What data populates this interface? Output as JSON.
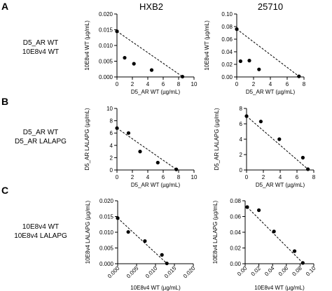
{
  "figure": {
    "column_headers": [
      "HXB2",
      "25710"
    ],
    "rows": [
      {
        "letter": "A",
        "label_lines": [
          "D5_AR WT",
          "10E8v4 WT"
        ]
      },
      {
        "letter": "B",
        "label_lines": [
          "D5_AR WT",
          "D5_AR LALAPG"
        ]
      },
      {
        "letter": "C",
        "label_lines": [
          "10E8v4 WT",
          "10E8v4 LALAPG"
        ]
      }
    ]
  },
  "chart_data": [
    {
      "type": "scatter",
      "id": "A-HXB2",
      "xlabel": "D5_AR WT (µg/mL)",
      "ylabel": "10E8v4 WT (µg/mL)",
      "xlim": [
        0,
        10
      ],
      "ylim": [
        0,
        0.02
      ],
      "xticks": [
        0,
        2,
        4,
        6,
        8,
        10
      ],
      "xtick_labels": [
        "0",
        "2",
        "4",
        "6",
        "8",
        "10"
      ],
      "yticks": [
        0,
        0.005,
        0.01,
        0.015,
        0.02
      ],
      "ytick_labels": [
        "0.000",
        "0.005",
        "0.010",
        "0.015",
        "0.020"
      ],
      "xtick_rotate": false,
      "points": [
        [
          0,
          0.0145
        ],
        [
          1,
          0.0061
        ],
        [
          2.2,
          0.0042
        ],
        [
          4.5,
          0.0022
        ],
        [
          8.5,
          0.0001
        ]
      ],
      "line": [
        [
          0,
          0.0145
        ],
        [
          8.5,
          0.0001
        ]
      ]
    },
    {
      "type": "scatter",
      "id": "A-25710",
      "xlabel": "D5_AR WT (µg/mL)",
      "ylabel": "10E8v4 WT (µg/mL)",
      "xlim": [
        0,
        8
      ],
      "ylim": [
        0,
        0.1
      ],
      "xticks": [
        0,
        2,
        4,
        6,
        8
      ],
      "xtick_labels": [
        "0",
        "2",
        "4",
        "6",
        "8"
      ],
      "yticks": [
        0,
        0.02,
        0.04,
        0.06,
        0.08,
        0.1
      ],
      "ytick_labels": [
        "0.00",
        "0.02",
        "0.04",
        "0.06",
        "0.08",
        "0.10"
      ],
      "xtick_rotate": false,
      "points": [
        [
          0,
          0.076
        ],
        [
          0.45,
          0.025
        ],
        [
          1.5,
          0.026
        ],
        [
          2.65,
          0.012
        ],
        [
          7.4,
          0.001
        ]
      ],
      "line": [
        [
          0,
          0.076
        ],
        [
          7.4,
          0.001
        ]
      ]
    },
    {
      "type": "scatter",
      "id": "B-HXB2",
      "xlabel": "D5_AR WT (µg/mL)",
      "ylabel": "D5_AR LALAPG (µg/mL)",
      "xlim": [
        0,
        10
      ],
      "ylim": [
        0,
        10
      ],
      "xticks": [
        0,
        2,
        4,
        6,
        8,
        10
      ],
      "xtick_labels": [
        "0",
        "2",
        "4",
        "6",
        "8",
        "10"
      ],
      "yticks": [
        0,
        2,
        4,
        6,
        8,
        10
      ],
      "ytick_labels": [
        "0",
        "2",
        "4",
        "6",
        "8",
        "10"
      ],
      "xtick_rotate": false,
      "points": [
        [
          0,
          6.8
        ],
        [
          1.5,
          6.0
        ],
        [
          3.0,
          3.0
        ],
        [
          5.3,
          1.2
        ],
        [
          7.7,
          0.1
        ]
      ],
      "line": [
        [
          0,
          6.8
        ],
        [
          7.7,
          0.1
        ]
      ]
    },
    {
      "type": "scatter",
      "id": "B-25710",
      "xlabel": "D5_AR WT (µg/mL)",
      "ylabel": "D5_AR LALAPG (µg/mL)",
      "xlim": [
        0,
        8
      ],
      "ylim": [
        0,
        8
      ],
      "xticks": [
        0,
        2,
        4,
        6,
        8
      ],
      "xtick_labels": [
        "0",
        "2",
        "4",
        "6",
        "8"
      ],
      "yticks": [
        0,
        2,
        4,
        6,
        8
      ],
      "ytick_labels": [
        "0",
        "2",
        "4",
        "6",
        "8"
      ],
      "xtick_rotate": false,
      "points": [
        [
          0,
          7.0
        ],
        [
          1.7,
          6.3
        ],
        [
          3.9,
          4.0
        ],
        [
          6.7,
          1.6
        ],
        [
          7.3,
          0.1
        ]
      ],
      "line": [
        [
          0,
          7.0
        ],
        [
          7.3,
          0.1
        ]
      ]
    },
    {
      "type": "scatter",
      "id": "C-HXB2",
      "xlabel": "10E8v4 WT (µg/mL)",
      "ylabel": "10E8v4 LALAPG (µg/mL)",
      "xlim": [
        0,
        0.02
      ],
      "ylim": [
        0,
        0.02
      ],
      "xticks": [
        0,
        0.005,
        0.01,
        0.015,
        0.02
      ],
      "xtick_labels": [
        "0.000",
        "0.005",
        "0.010",
        "0.015",
        "0.020"
      ],
      "yticks": [
        0,
        0.005,
        0.01,
        0.015,
        0.02
      ],
      "ytick_labels": [
        "0.000",
        "0.005",
        "0.010",
        "0.015",
        "0.020"
      ],
      "xtick_rotate": true,
      "points": [
        [
          0,
          0.0145
        ],
        [
          0.0028,
          0.0101
        ],
        [
          0.0072,
          0.0072
        ],
        [
          0.0117,
          0.0028
        ],
        [
          0.013,
          0.0001
        ]
      ],
      "line": [
        [
          0,
          0.0145
        ],
        [
          0.013,
          0.0001
        ]
      ]
    },
    {
      "type": "scatter",
      "id": "C-25710",
      "xlabel": "10E8v4 WT (µg/mL)",
      "ylabel": "10E8v4 LALAPG (µg/mL)",
      "xlim": [
        0,
        0.1
      ],
      "ylim": [
        0,
        0.08
      ],
      "xticks": [
        0,
        0.02,
        0.04,
        0.06,
        0.08,
        0.1
      ],
      "xtick_labels": [
        "0.00",
        "0.02",
        "0.04",
        "0.06",
        "0.08",
        "0.10"
      ],
      "yticks": [
        0,
        0.02,
        0.04,
        0.06,
        0.08
      ],
      "ytick_labels": [
        "0.00",
        "0.02",
        "0.04",
        "0.06",
        "0.08"
      ],
      "xtick_rotate": true,
      "points": [
        [
          0.003,
          0.072
        ],
        [
          0.02,
          0.068
        ],
        [
          0.042,
          0.041
        ],
        [
          0.072,
          0.016
        ],
        [
          0.084,
          0.001
        ]
      ],
      "line": [
        [
          0.003,
          0.072
        ],
        [
          0.084,
          0.001
        ]
      ]
    }
  ]
}
